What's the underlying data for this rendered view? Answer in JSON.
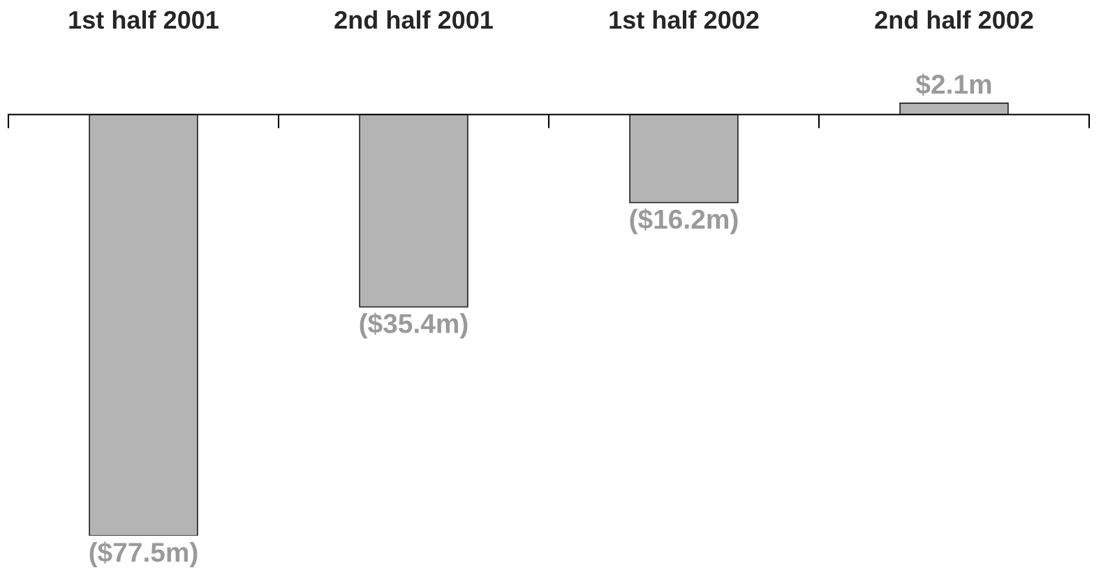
{
  "chart_data": {
    "type": "bar",
    "categories": [
      "1st half 2001",
      "2nd half 2001",
      "1st half 2002",
      "2nd half 2002"
    ],
    "values": [
      -77.5,
      -35.4,
      -16.2,
      2.1
    ],
    "value_labels": [
      "($77.5m)",
      "($35.4m)",
      "($16.2m)",
      "$2.1m"
    ],
    "color": "#b4b4b4",
    "grid": false,
    "legend": false
  }
}
